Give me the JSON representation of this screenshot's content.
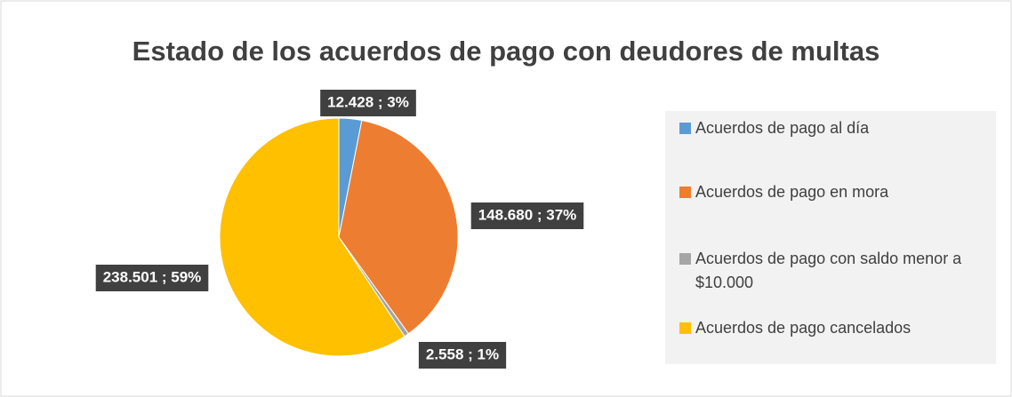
{
  "chart_data": {
    "type": "pie",
    "title": "Estado de los acuerdos de pago con deudores de multas",
    "categories": [
      "Acuerdos de pago al día",
      "Acuerdos de pago en mora",
      "Acuerdos de pago con saldo menor a $10.000",
      "Acuerdos de pago cancelados"
    ],
    "values": [
      12428,
      148680,
      2558,
      238501
    ],
    "value_labels": [
      "12.428 ; 3%",
      "148.680 ; 37%",
      "2.558 ; 1%",
      "238.501 ; 59%"
    ],
    "colors": [
      "#5b9bd5",
      "#ed7d31",
      "#a5a5a5",
      "#ffc000"
    ]
  }
}
